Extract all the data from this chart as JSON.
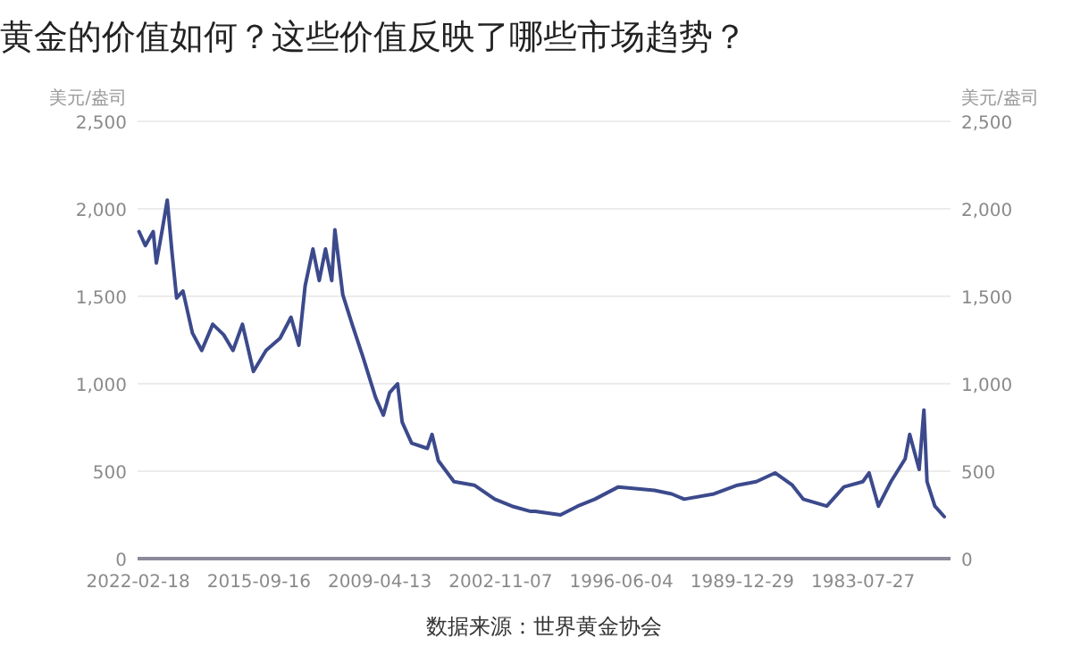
{
  "chart_data": {
    "type": "line",
    "title": "黄金的价值如何？这些价值反映了哪些市场趋势？",
    "ylabel": "美元/盎司",
    "y2label": "美元/盎司",
    "annotations": [
      "数据来源：世界黄金协会"
    ],
    "x": [
      "2022-02",
      "2021-10",
      "2021-05",
      "2021-03",
      "2020-11",
      "2020-08",
      "2020-05",
      "2020-02",
      "2019-10",
      "2019-04",
      "2018-10",
      "2018-03",
      "2017-08",
      "2017-02",
      "2016-08",
      "2016-01",
      "2015-05",
      "2014-08",
      "2014-01",
      "2013-08",
      "2013-04",
      "2012-11",
      "2012-07",
      "2012-03",
      "2011-11",
      "2011-09",
      "2011-04",
      "2010-10",
      "2010-03",
      "2009-07",
      "2009-02",
      "2008-10",
      "2008-05",
      "2008-02",
      "2007-08",
      "2006-10",
      "2006-07",
      "2006-03",
      "2005-05",
      "2004-04",
      "2003-03",
      "2002-04",
      "2001-04",
      "2001-01",
      "1999-09",
      "1998-10",
      "1997-11",
      "1996-08",
      "1994-09",
      "1993-10",
      "1993-02",
      "1991-07",
      "1990-04",
      "1989-04",
      "1988-04",
      "1987-05",
      "1986-10",
      "1985-07",
      "1984-08",
      "1983-08",
      "1983-04",
      "1982-10",
      "1982-02",
      "1981-05",
      "1981-02",
      "1980-08",
      "1980-05",
      "1980-03",
      "1979-10",
      "1979-04"
    ],
    "series": [
      {
        "color": "#3c4a8c",
        "values": [
          1870,
          1790,
          1870,
          1690,
          1890,
          2050,
          1750,
          1490,
          1530,
          1290,
          1190,
          1340,
          1280,
          1190,
          1340,
          1070,
          1190,
          1260,
          1380,
          1220,
          1560,
          1770,
          1590,
          1770,
          1590,
          1880,
          1510,
          1340,
          1150,
          920,
          820,
          950,
          1000,
          780,
          660,
          630,
          710,
          560,
          440,
          420,
          340,
          300,
          270,
          270,
          250,
          300,
          340,
          410,
          390,
          370,
          340,
          370,
          420,
          440,
          490,
          420,
          340,
          300,
          410,
          440,
          490,
          300,
          440,
          570,
          710,
          510,
          850,
          440,
          300,
          240
        ]
      }
    ],
    "xlim": [
      "2022-03-01",
      "1978-12-01"
    ],
    "xticks": [
      "2022-02-18",
      "2015-09-16",
      "2009-04-13",
      "2002-11-07",
      "1996-06-04",
      "1989-12-29",
      "1983-07-27"
    ],
    "ylim": [
      0,
      2500
    ],
    "yticks": [
      {
        "value": 0,
        "label": "0"
      },
      {
        "value": 500,
        "label": "500"
      },
      {
        "value": 1000,
        "label": "1,000"
      },
      {
        "value": 1500,
        "label": "1,500"
      },
      {
        "value": 2000,
        "label": "2,000"
      },
      {
        "value": 2500,
        "label": "2,500"
      }
    ],
    "y2lim": [
      0,
      2500
    ],
    "y2ticks": [
      {
        "value": 0,
        "label": "0"
      },
      {
        "value": 500,
        "label": "500"
      },
      {
        "value": 1000,
        "label": "1,000"
      },
      {
        "value": 1500,
        "label": "1,500"
      },
      {
        "value": 2000,
        "label": "2,000"
      },
      {
        "value": 2500,
        "label": "2,500"
      }
    ],
    "grid": "y"
  }
}
